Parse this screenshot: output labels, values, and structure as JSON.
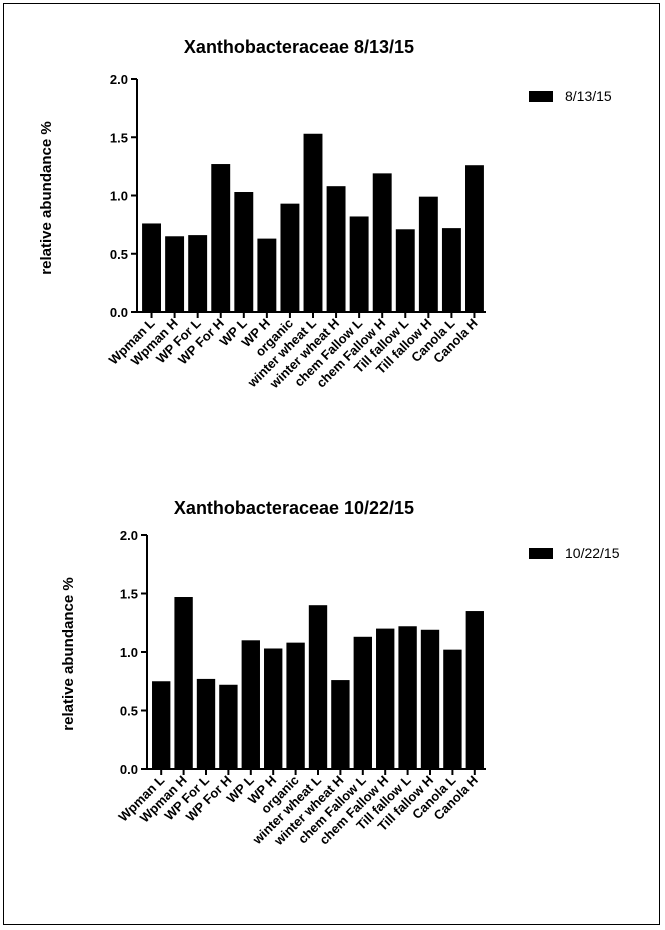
{
  "chart_data": [
    {
      "type": "bar",
      "title": "Xanthobacteraceae 8/13/15",
      "xlabel": "",
      "ylabel": "relative abundance %",
      "ylim": [
        0,
        2.0
      ],
      "yticks": [
        "0.0",
        "0.5",
        "1.0",
        "1.5",
        "2.0"
      ],
      "legend_position": "top-right",
      "categories": [
        "Wpman L",
        "Wpman H",
        "WP For L",
        "WP For H",
        "WP L",
        "WP H",
        "organic",
        "winter wheat L",
        "winter wheat H",
        "chem Fallow L",
        "chem Fallow H",
        "Till fallow L",
        "Till fallow H",
        "Canola L",
        "Canola H"
      ],
      "series": [
        {
          "name": "8/13/15",
          "color": "#000000",
          "values": [
            0.76,
            0.65,
            0.66,
            1.27,
            1.03,
            0.63,
            0.93,
            1.53,
            1.08,
            0.82,
            1.19,
            0.71,
            0.99,
            0.72,
            1.26
          ]
        }
      ]
    },
    {
      "type": "bar",
      "title": "Xanthobacteraceae 10/22/15",
      "xlabel": "",
      "ylabel": "relative abundance %",
      "ylim": [
        0,
        2.0
      ],
      "yticks": [
        "0.0",
        "0.5",
        "1.0",
        "1.5",
        "2.0"
      ],
      "legend_position": "top-right",
      "categories": [
        "Wpman L",
        "Wpman H",
        "WP For L",
        "WP For H",
        "WP L",
        "WP H",
        "organic",
        "winter wheat L",
        "winter wheat H",
        "chem Fallow L",
        "chem Fallow H",
        "Till fallow L",
        "Till fallow H",
        "Canola L",
        "Canola H"
      ],
      "series": [
        {
          "name": "10/22/15",
          "color": "#000000",
          "values": [
            0.75,
            1.47,
            0.77,
            0.72,
            1.1,
            1.03,
            1.08,
            1.4,
            0.76,
            1.13,
            1.2,
            1.22,
            1.19,
            1.02,
            1.35
          ]
        }
      ]
    }
  ]
}
